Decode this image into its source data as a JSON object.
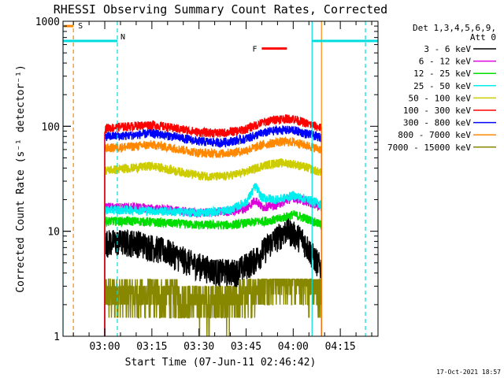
{
  "chart_data": {
    "type": "line",
    "title": "RHESSI Observing Summary Count Rates, Corrected",
    "xlabel": "Start Time (07-Jun-11 02:46:42)",
    "ylabel": "Corrected Count Rate (s⁻¹ detector⁻¹)",
    "x_unit": "time (HH:MM, 07-Jun-2011)",
    "xlim": [
      "02:46:42",
      "04:27:00"
    ],
    "x_ticks": [
      "03:00",
      "03:15",
      "03:30",
      "03:45",
      "04:00",
      "04:15"
    ],
    "y_scale": "log",
    "ylim": [
      1,
      1000
    ],
    "y_ticks": [
      "1",
      "10",
      "100",
      "1000"
    ],
    "legend_header": [
      "Det 1,3,4,5,6,9,",
      "Att 0"
    ],
    "legend_position": "right",
    "footer": "17-Oct-2021 18:57",
    "data_window": [
      "03:00",
      "04:09"
    ],
    "series": [
      {
        "name": "3 - 6 keV",
        "color": "#000000",
        "x": [
          "03:00",
          "03:10",
          "03:20",
          "03:28",
          "03:36",
          "03:42",
          "03:48",
          "03:53",
          "03:58",
          "04:03",
          "04:07",
          "04:09"
        ],
        "values": [
          8,
          8,
          6.5,
          5,
          4.2,
          4.2,
          5.5,
          8,
          10.5,
          8.5,
          5.5,
          4.5
        ]
      },
      {
        "name": "6 - 12 keV",
        "color": "#dd00dd",
        "x": [
          "03:00",
          "03:10",
          "03:20",
          "03:30",
          "03:40",
          "03:45",
          "03:48",
          "03:50",
          "03:55",
          "04:00",
          "04:05",
          "04:09"
        ],
        "values": [
          17,
          17,
          16,
          15,
          15.5,
          16.5,
          20,
          17,
          18,
          21,
          19,
          17
        ]
      },
      {
        "name": "12 - 25 keV",
        "color": "#00dd00",
        "x": [
          "03:00",
          "03:10",
          "03:20",
          "03:30",
          "03:40",
          "03:45",
          "03:50",
          "03:55",
          "04:00",
          "04:05",
          "04:09"
        ],
        "values": [
          12.5,
          12.5,
          12,
          11.5,
          11.5,
          12,
          12.5,
          13,
          14.5,
          13,
          11.5
        ]
      },
      {
        "name": "25 - 50 keV",
        "color": "#00eeee",
        "x": [
          "03:00",
          "03:10",
          "03:20",
          "03:30",
          "03:40",
          "03:45",
          "03:48",
          "03:50",
          "03:55",
          "04:00",
          "04:05",
          "04:09"
        ],
        "values": [
          16,
          16,
          15.5,
          15,
          16,
          19,
          27,
          21,
          20,
          22,
          20,
          18
        ]
      },
      {
        "name": "50 - 100 keV",
        "color": "#cccc00",
        "x": [
          "03:00",
          "03:08",
          "03:15",
          "03:22",
          "03:30",
          "03:37",
          "03:44",
          "03:50",
          "03:55",
          "04:00",
          "04:05",
          "04:09"
        ],
        "values": [
          38,
          40,
          42,
          38,
          34,
          33,
          36,
          42,
          45,
          44,
          40,
          36
        ]
      },
      {
        "name": "100 - 300 keV",
        "color": "#ff0000",
        "x": [
          "03:00",
          "03:08",
          "03:15",
          "03:22",
          "03:30",
          "03:37",
          "03:44",
          "03:50",
          "03:55",
          "04:00",
          "04:05",
          "04:09"
        ],
        "values": [
          96,
          100,
          104,
          96,
          88,
          86,
          92,
          108,
          118,
          118,
          105,
          96
        ]
      },
      {
        "name": "300 - 800 keV",
        "color": "#0000ff",
        "x": [
          "03:00",
          "03:08",
          "03:15",
          "03:22",
          "03:30",
          "03:37",
          "03:44",
          "03:50",
          "03:55",
          "04:00",
          "04:05",
          "04:09"
        ],
        "values": [
          80,
          82,
          86,
          80,
          72,
          70,
          75,
          86,
          92,
          92,
          84,
          78
        ]
      },
      {
        "name": "800 - 7000 keV",
        "color": "#ff8800",
        "x": [
          "03:00",
          "03:08",
          "03:15",
          "03:22",
          "03:30",
          "03:37",
          "03:44",
          "03:50",
          "03:55",
          "04:00",
          "04:05",
          "04:09"
        ],
        "values": [
          62,
          64,
          67,
          62,
          56,
          55,
          58,
          66,
          71,
          71,
          65,
          60
        ]
      },
      {
        "name": "7000 - 15000 keV",
        "color": "#888800",
        "x": [
          "03:00",
          "03:10",
          "03:20",
          "03:30",
          "03:40",
          "03:45",
          "03:50",
          "03:55",
          "04:00",
          "04:05",
          "04:09"
        ],
        "values": [
          2.5,
          2.5,
          2.5,
          2.2,
          2.2,
          2.5,
          3.2,
          3.7,
          3.7,
          3.0,
          2.6
        ]
      }
    ],
    "annotations": [
      {
        "label": "S",
        "color": "#ff8800",
        "x_start": "02:47:00",
        "x_end": "02:50:00",
        "y": 900
      },
      {
        "label": "N",
        "color": "#00dddd",
        "x_start": "02:46:42",
        "x_end": "03:04:00",
        "y": 650
      },
      {
        "label": "F",
        "color": "#ff0000",
        "x_start": "03:50:00",
        "x_end": "03:58:00",
        "y": 550
      },
      {
        "label": "",
        "color": "#00dddd",
        "x_start": "04:06:00",
        "x_end": "04:27:00",
        "y": 650
      }
    ],
    "vertical_lines": [
      {
        "x": "02:46:42",
        "color": "#00dddd",
        "style": "solid"
      },
      {
        "x": "02:50:00",
        "color": "#ff8800",
        "style": "dashed"
      },
      {
        "x": "03:04:00",
        "color": "#00dddd",
        "style": "dashed"
      },
      {
        "x": "04:06:00",
        "color": "#00dddd",
        "style": "solid"
      },
      {
        "x": "04:09:00",
        "color": "#ff8800",
        "style": "solid"
      },
      {
        "x": "04:23:00",
        "color": "#00dddd",
        "style": "dashed"
      }
    ]
  }
}
